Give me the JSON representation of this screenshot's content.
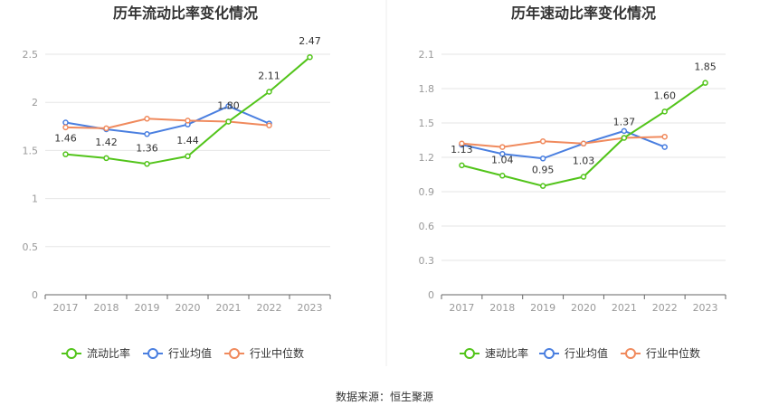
{
  "source_label": "数据来源：恒生聚源",
  "chart_data": [
    {
      "type": "line",
      "title": "历年流动比率变化情况",
      "categories": [
        "2017",
        "2018",
        "2019",
        "2020",
        "2021",
        "2022",
        "2023"
      ],
      "ylim": [
        0,
        2.5
      ],
      "yticks": [
        "0",
        "0.5",
        "1",
        "1.5",
        "2",
        "2.5"
      ],
      "grid": true,
      "legend_position": "bottom",
      "series": [
        {
          "name": "流动比率",
          "color": "#52c41a",
          "values": [
            1.46,
            1.42,
            1.36,
            1.44,
            1.8,
            2.11,
            2.47
          ],
          "labels": [
            "1.46",
            "1.42",
            "1.36",
            "1.44",
            "1.80",
            "2.11",
            "2.47"
          ]
        },
        {
          "name": "行业均值",
          "color": "#4a7fe0",
          "values": [
            1.79,
            1.72,
            1.67,
            1.77,
            1.96,
            1.78,
            null
          ]
        },
        {
          "name": "行业中位数",
          "color": "#f08a5d",
          "values": [
            1.74,
            1.73,
            1.83,
            1.81,
            1.8,
            1.76,
            null
          ]
        }
      ]
    },
    {
      "type": "line",
      "title": "历年速动比率变化情况",
      "categories": [
        "2017",
        "2018",
        "2019",
        "2020",
        "2021",
        "2022",
        "2023"
      ],
      "ylim": [
        0,
        2.1
      ],
      "yticks": [
        "0",
        "0.3",
        "0.6",
        "0.9",
        "1.2",
        "1.5",
        "1.8",
        "2.1"
      ],
      "grid": true,
      "legend_position": "bottom",
      "series": [
        {
          "name": "速动比率",
          "color": "#52c41a",
          "values": [
            1.13,
            1.04,
            0.95,
            1.03,
            1.37,
            1.6,
            1.85
          ],
          "labels": [
            "1.13",
            "1.04",
            "0.95",
            "1.03",
            "1.37",
            "1.60",
            "1.85"
          ]
        },
        {
          "name": "行业均值",
          "color": "#4a7fe0",
          "values": [
            1.31,
            1.23,
            1.19,
            1.32,
            1.43,
            1.29,
            null
          ]
        },
        {
          "name": "行业中位数",
          "color": "#f08a5d",
          "values": [
            1.32,
            1.29,
            1.34,
            1.32,
            1.37,
            1.38,
            null
          ]
        }
      ]
    }
  ]
}
